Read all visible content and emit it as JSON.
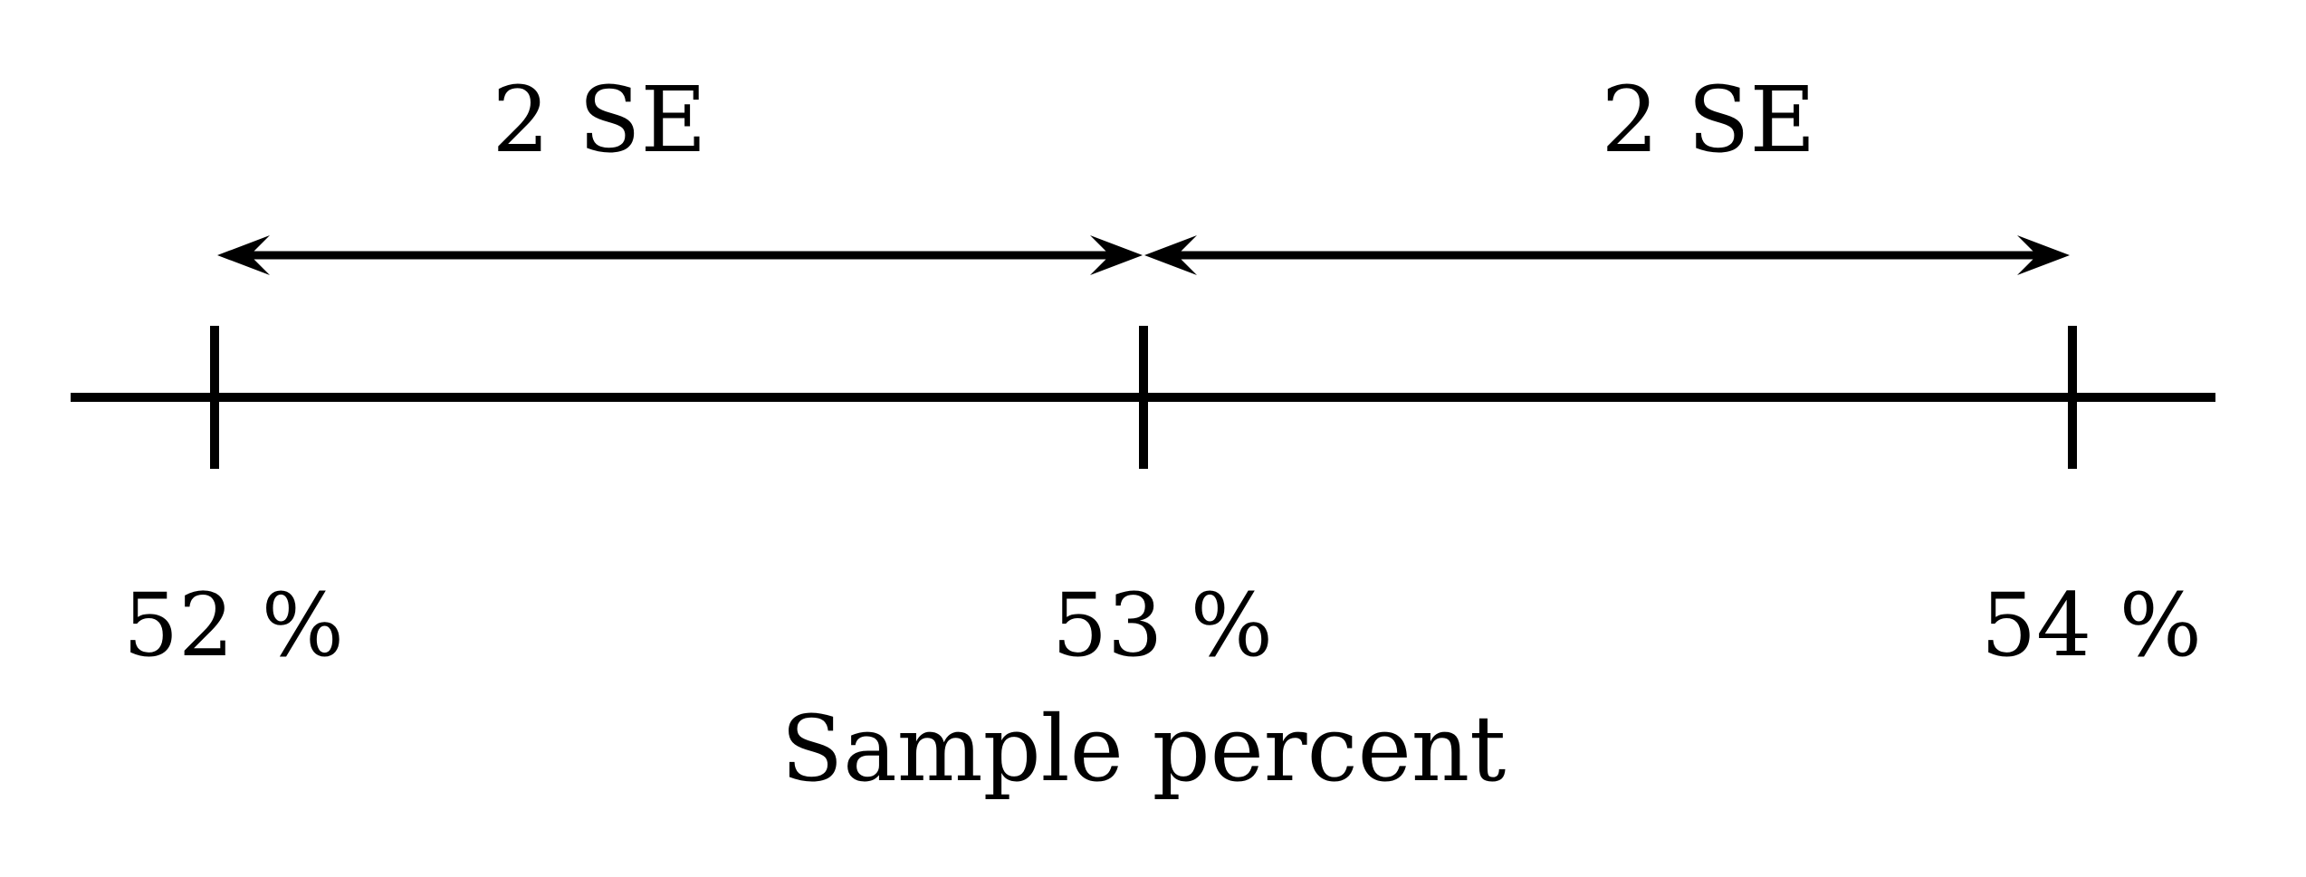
{
  "diagram": {
    "spans": [
      {
        "label": "2 SE"
      },
      {
        "label": "2 SE"
      }
    ],
    "ticks": [
      {
        "label": "52 %"
      },
      {
        "label": "53 %"
      },
      {
        "label": "54 %"
      }
    ],
    "axis_title": "Sample percent",
    "colors": {
      "line": "#000000",
      "background": "#ffffff"
    }
  }
}
